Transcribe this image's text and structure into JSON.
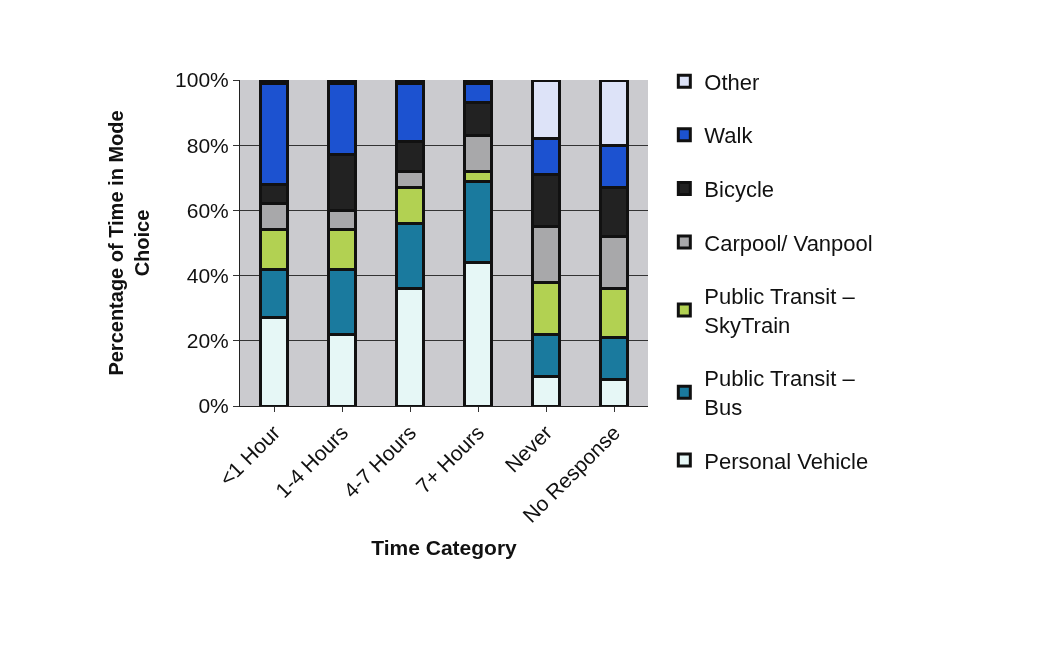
{
  "chart_data": {
    "type": "bar",
    "stacked": true,
    "xlabel": "Time Category",
    "ylabel": "Percentage of Time in Mode Choice",
    "categories": [
      "<1 Hour",
      "1-4 Hours",
      "4-7 Hours",
      "7+ Hours",
      "Never",
      "No Response"
    ],
    "series": [
      {
        "name": "Personal Vehicle",
        "color": "#e6f7f6",
        "values": [
          27,
          22,
          36,
          44,
          9,
          8
        ]
      },
      {
        "name": "Public Transit – Bus",
        "color": "#1a7a9e",
        "values": [
          15,
          20,
          20,
          25,
          13,
          13
        ]
      },
      {
        "name": "Public Transit – SkyTrain",
        "color": "#b2d152",
        "values": [
          12,
          12,
          11,
          3,
          16,
          15
        ]
      },
      {
        "name": "Carpool/ Vanpool",
        "color": "#a8a8aa",
        "values": [
          8,
          6,
          5,
          11,
          17,
          16
        ]
      },
      {
        "name": "Bicycle",
        "color": "#222222",
        "values": [
          6,
          17,
          9,
          10,
          16,
          15
        ]
      },
      {
        "name": "Walk",
        "color": "#1c52d0",
        "values": [
          31,
          22,
          18,
          6,
          11,
          13
        ]
      },
      {
        "name": "Other",
        "color": "#dde3f8",
        "values": [
          1,
          1,
          1,
          1,
          18,
          20
        ]
      }
    ],
    "ylim": [
      0,
      100
    ],
    "yticks": [
      {
        "value": 0,
        "label": "0%"
      },
      {
        "value": 20,
        "label": "20%"
      },
      {
        "value": 40,
        "label": "40%"
      },
      {
        "value": 60,
        "label": "60%"
      },
      {
        "value": 80,
        "label": "80%"
      },
      {
        "value": 100,
        "label": "100%"
      }
    ],
    "grid": "y",
    "legend": "right"
  }
}
